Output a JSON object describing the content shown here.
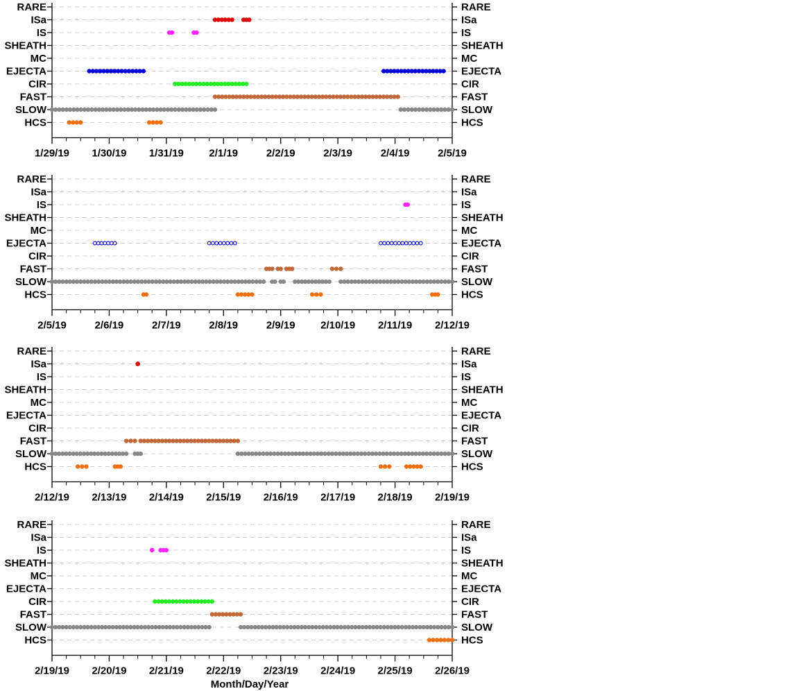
{
  "chart_data": {
    "type": "scatter",
    "xlabel": "Month/Day/Year",
    "categories": [
      "RARE",
      "ISa",
      "IS",
      "SHEATH",
      "MC",
      "EJECTA",
      "CIR",
      "FAST",
      "SLOW",
      "HCS"
    ],
    "colors": {
      "ISa": "#e00000",
      "IS": "#ff22ff",
      "EJECTA": "#0000dd",
      "CIR": "#22ee22",
      "FAST": "#c06838",
      "SLOW": "#888888",
      "HCS": "#f07010"
    },
    "panels": [
      {
        "xlim": [
          0,
          7
        ],
        "tick_labels": [
          "1/29/19",
          "1/30/19",
          "1/31/19",
          "2/1/19",
          "2/2/19",
          "2/3/19",
          "2/4/19",
          "2/5/19"
        ],
        "series": [
          {
            "category": "ISa",
            "marker": "filled",
            "segments": [
              [
                2.85,
                3.15
              ],
              [
                3.35,
                3.45
              ]
            ]
          },
          {
            "category": "IS",
            "marker": "filled",
            "segments": [
              [
                2.05,
                2.1
              ],
              [
                2.48,
                2.53
              ]
            ]
          },
          {
            "category": "EJECTA",
            "marker": "filled",
            "segments": [
              [
                0.65,
                1.6
              ],
              [
                5.8,
                6.85
              ]
            ]
          },
          {
            "category": "CIR",
            "marker": "filled",
            "segments": [
              [
                2.15,
                3.4
              ]
            ]
          },
          {
            "category": "FAST",
            "marker": "filled",
            "segments": [
              [
                2.85,
                6.05
              ]
            ]
          },
          {
            "category": "SLOW",
            "marker": "filled",
            "segments": [
              [
                0,
                2.85
              ],
              [
                6.1,
                7
              ]
            ]
          },
          {
            "category": "HCS",
            "marker": "filled",
            "segments": [
              [
                0.3,
                0.5
              ],
              [
                1.7,
                1.9
              ]
            ]
          }
        ]
      },
      {
        "xlim": [
          0,
          7
        ],
        "tick_labels": [
          "2/5/19",
          "2/6/19",
          "2/7/19",
          "2/8/19",
          "2/9/19",
          "2/10/19",
          "2/11/19",
          "2/12/19"
        ],
        "series": [
          {
            "category": "IS",
            "marker": "filled",
            "segments": [
              [
                6.18,
                6.22
              ]
            ]
          },
          {
            "category": "EJECTA",
            "marker": "open",
            "segments": [
              [
                0.75,
                1.1
              ],
              [
                2.75,
                3.2
              ],
              [
                5.75,
                6.45
              ]
            ]
          },
          {
            "category": "FAST",
            "marker": "filled",
            "segments": [
              [
                3.75,
                3.85
              ],
              [
                3.95,
                4.0
              ],
              [
                4.1,
                4.2
              ],
              [
                4.9,
                5.05
              ]
            ]
          },
          {
            "category": "SLOW",
            "marker": "filled",
            "segments": [
              [
                0,
                3.7
              ],
              [
                3.85,
                3.9
              ],
              [
                4.0,
                4.05
              ],
              [
                4.25,
                4.85
              ],
              [
                5.05,
                7
              ]
            ]
          },
          {
            "category": "HCS",
            "marker": "filled",
            "segments": [
              [
                1.6,
                1.65
              ],
              [
                3.25,
                3.5
              ],
              [
                4.55,
                4.7
              ],
              [
                6.65,
                6.75
              ]
            ]
          }
        ]
      },
      {
        "xlim": [
          0,
          7
        ],
        "tick_labels": [
          "2/12/19",
          "2/13/19",
          "2/14/19",
          "2/15/19",
          "2/16/19",
          "2/17/19",
          "2/18/19",
          "2/19/19"
        ],
        "series": [
          {
            "category": "ISa",
            "marker": "filled",
            "segments": [
              [
                1.5,
                1.5
              ]
            ]
          },
          {
            "category": "FAST",
            "marker": "filled",
            "segments": [
              [
                1.3,
                1.45
              ],
              [
                1.55,
                3.25
              ]
            ]
          },
          {
            "category": "SLOW",
            "marker": "filled",
            "segments": [
              [
                0,
                1.3
              ],
              [
                1.45,
                1.55
              ],
              [
                3.25,
                7
              ]
            ]
          },
          {
            "category": "HCS",
            "marker": "filled",
            "segments": [
              [
                0.45,
                0.6
              ],
              [
                1.1,
                1.2
              ],
              [
                5.75,
                5.9
              ],
              [
                6.2,
                6.45
              ]
            ]
          }
        ]
      },
      {
        "xlim": [
          0,
          7
        ],
        "tick_labels": [
          "2/19/19",
          "2/20/19",
          "2/21/19",
          "2/22/19",
          "2/23/19",
          "2/24/19",
          "2/25/19",
          "2/26/19"
        ],
        "series": [
          {
            "category": "IS",
            "marker": "filled",
            "segments": [
              [
                1.75,
                1.75
              ],
              [
                1.9,
                2.0
              ]
            ]
          },
          {
            "category": "CIR",
            "marker": "filled",
            "segments": [
              [
                1.8,
                2.8
              ]
            ]
          },
          {
            "category": "FAST",
            "marker": "filled",
            "segments": [
              [
                2.8,
                3.3
              ]
            ]
          },
          {
            "category": "SLOW",
            "marker": "filled",
            "segments": [
              [
                0,
                2.75
              ],
              [
                3.3,
                7
              ]
            ]
          },
          {
            "category": "HCS",
            "marker": "filled",
            "segments": [
              [
                6.6,
                7
              ]
            ]
          }
        ]
      }
    ]
  }
}
